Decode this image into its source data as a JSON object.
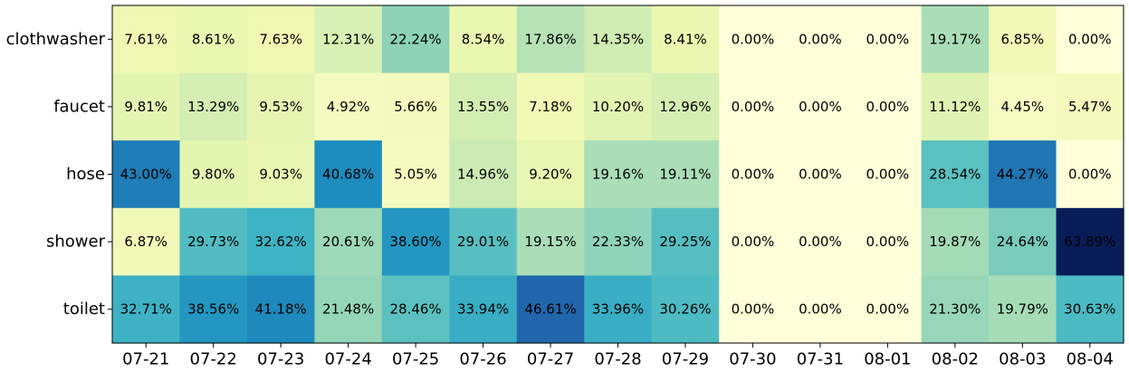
{
  "chart_data": {
    "type": "heatmap",
    "title": "",
    "xlabel": "",
    "ylabel": "",
    "colormap": "YlGnBu",
    "value_range": [
      0,
      63.89
    ],
    "x": [
      "07-21",
      "07-22",
      "07-23",
      "07-24",
      "07-25",
      "07-26",
      "07-27",
      "07-28",
      "07-29",
      "07-30",
      "07-31",
      "08-01",
      "08-02",
      "08-03",
      "08-04"
    ],
    "y": [
      "clothwasher",
      "faucet",
      "hose",
      "shower",
      "toilet"
    ],
    "values": [
      [
        7.61,
        8.61,
        7.63,
        12.31,
        22.24,
        8.54,
        17.86,
        14.35,
        8.41,
        0.0,
        0.0,
        0.0,
        19.17,
        6.85,
        0.0
      ],
      [
        9.81,
        13.29,
        9.53,
        4.92,
        5.66,
        13.55,
        7.18,
        10.2,
        12.96,
        0.0,
        0.0,
        0.0,
        11.12,
        4.45,
        5.47
      ],
      [
        43.0,
        9.8,
        9.03,
        40.68,
        5.05,
        14.96,
        9.2,
        19.16,
        19.11,
        0.0,
        0.0,
        0.0,
        28.54,
        44.27,
        0.0
      ],
      [
        6.87,
        29.73,
        32.62,
        20.61,
        38.6,
        29.01,
        19.15,
        22.33,
        29.25,
        0.0,
        0.0,
        0.0,
        19.87,
        24.64,
        63.89
      ],
      [
        32.71,
        38.56,
        41.18,
        21.48,
        28.46,
        33.94,
        46.61,
        33.96,
        30.26,
        0.0,
        0.0,
        0.0,
        21.3,
        19.79,
        30.63
      ]
    ],
    "labels": [
      [
        "7.61%",
        "8.61%",
        "7.63%",
        "12.31%",
        "22.24%",
        "8.54%",
        "17.86%",
        "14.35%",
        "8.41%",
        "0.00%",
        "0.00%",
        "0.00%",
        "19.17%",
        "6.85%",
        "0.00%"
      ],
      [
        "9.81%",
        "13.29%",
        "9.53%",
        "4.92%",
        "5.66%",
        "13.55%",
        "7.18%",
        "10.20%",
        "12.96%",
        "0.00%",
        "0.00%",
        "0.00%",
        "11.12%",
        "4.45%",
        "5.47%"
      ],
      [
        "43.00%",
        "9.80%",
        "9.03%",
        "40.68%",
        "5.05%",
        "14.96%",
        "9.20%",
        "19.16%",
        "19.11%",
        "0.00%",
        "0.00%",
        "0.00%",
        "28.54%",
        "44.27%",
        "0.00%"
      ],
      [
        "6.87%",
        "29.73%",
        "32.62%",
        "20.61%",
        "38.60%",
        "29.01%",
        "19.15%",
        "22.33%",
        "29.25%",
        "0.00%",
        "0.00%",
        "0.00%",
        "19.87%",
        "24.64%",
        "63.89%"
      ],
      [
        "32.71%",
        "38.56%",
        "41.18%",
        "21.48%",
        "28.46%",
        "33.94%",
        "46.61%",
        "33.96%",
        "30.26%",
        "0.00%",
        "0.00%",
        "0.00%",
        "21.30%",
        "19.79%",
        "30.63%"
      ]
    ]
  }
}
